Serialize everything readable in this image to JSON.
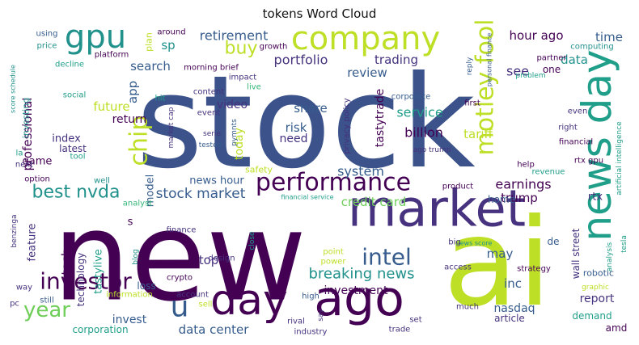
{
  "chart_data": {
    "type": "wordcloud",
    "title": "tokens Word Cloud",
    "colors": {
      "navy": "#46327e",
      "purple": "#440154",
      "blue": "#3b528b",
      "slate": "#365c8d",
      "teal": "#21918c",
      "sea": "#1f9e89",
      "green": "#35b779",
      "lime": "#6ece58",
      "yellow": "#bddf26",
      "yellowB": "#cfe11c"
    },
    "words": [
      {
        "text": "stock",
        "weight": 100,
        "color": "blue"
      },
      {
        "text": "new",
        "weight": 92,
        "color": "purple"
      },
      {
        "text": "ai",
        "weight": 88,
        "color": "yellow"
      },
      {
        "text": "market",
        "weight": 45,
        "color": "navy"
      },
      {
        "text": "day",
        "weight": 42,
        "color": "purple"
      },
      {
        "text": "ago",
        "weight": 42,
        "color": "purple"
      },
      {
        "text": "news day",
        "weight": 36,
        "color": "sea"
      },
      {
        "text": "company",
        "weight": 30,
        "color": "yellow"
      },
      {
        "text": "gpu",
        "weight": 30,
        "color": "teal"
      },
      {
        "text": "u",
        "weight": 30,
        "color": "slate"
      },
      {
        "text": "motley fool",
        "weight": 22,
        "color": "yellow"
      },
      {
        "text": "performance",
        "weight": 22,
        "color": "purple"
      },
      {
        "text": "investor",
        "weight": 22,
        "color": "purple"
      },
      {
        "text": "intel",
        "weight": 22,
        "color": "slate"
      },
      {
        "text": "chip",
        "weight": 22,
        "color": "yellow"
      },
      {
        "text": "year",
        "weight": 20,
        "color": "lime"
      },
      {
        "text": "best nvda",
        "weight": 18,
        "color": "teal"
      },
      {
        "text": "buy",
        "weight": 18,
        "color": "yellow"
      },
      {
        "text": "breaking news",
        "weight": 16,
        "color": "teal"
      },
      {
        "text": "stock market",
        "weight": 15,
        "color": "slate"
      },
      {
        "text": "portfolio",
        "weight": 15,
        "color": "navy"
      },
      {
        "text": "retirement",
        "weight": 14,
        "color": "slate"
      },
      {
        "text": "earnings",
        "weight": 14,
        "color": "purple"
      },
      {
        "text": "service",
        "weight": 14,
        "color": "sea"
      },
      {
        "text": "system",
        "weight": 14,
        "color": "slate"
      },
      {
        "text": "billion",
        "weight": 14,
        "color": "purple"
      },
      {
        "text": "hour ago",
        "weight": 14,
        "color": "purple"
      },
      {
        "text": "data center",
        "weight": 14,
        "color": "slate"
      },
      {
        "text": "may",
        "weight": 14,
        "color": "slate"
      },
      {
        "text": "inc",
        "weight": 14,
        "color": "slate"
      },
      {
        "text": "see",
        "weight": 14,
        "color": "navy"
      },
      {
        "text": "credit card",
        "weight": 13,
        "color": "lime"
      },
      {
        "text": "professional",
        "weight": 13,
        "color": "purple"
      },
      {
        "text": "trump",
        "weight": 13,
        "color": "purple"
      },
      {
        "text": "future",
        "weight": 13,
        "color": "yellow"
      },
      {
        "text": "review",
        "weight": 13,
        "color": "slate"
      },
      {
        "text": "search",
        "weight": 13,
        "color": "slate"
      },
      {
        "text": "share",
        "weight": 13,
        "color": "slate"
      },
      {
        "text": "risk",
        "weight": 13,
        "color": "slate"
      },
      {
        "text": "investment",
        "weight": 13,
        "color": "purple"
      },
      {
        "text": "tariff",
        "weight": 13,
        "color": "yellow"
      },
      {
        "text": "app",
        "weight": 13,
        "color": "slate"
      },
      {
        "text": "time",
        "weight": 13,
        "color": "slate"
      },
      {
        "text": "sp",
        "weight": 13,
        "color": "teal"
      },
      {
        "text": "trading",
        "weight": 13,
        "color": "navy"
      },
      {
        "text": "video",
        "weight": 12,
        "color": "navy"
      },
      {
        "text": "today",
        "weight": 12,
        "color": "yellow"
      },
      {
        "text": "need",
        "weight": 12,
        "color": "navy"
      },
      {
        "text": "tastytrade",
        "weight": 12,
        "color": "purple"
      },
      {
        "text": "data",
        "weight": 12,
        "color": "teal"
      },
      {
        "text": "tech",
        "weight": 12,
        "color": "purple"
      },
      {
        "text": "top",
        "weight": 12,
        "color": "navy"
      },
      {
        "text": "report",
        "weight": 12,
        "color": "navy"
      },
      {
        "text": "nasdaq",
        "weight": 12,
        "color": "slate"
      },
      {
        "text": "invest",
        "weight": 12,
        "color": "slate"
      },
      {
        "text": "model",
        "weight": 11,
        "color": "slate"
      },
      {
        "text": "return",
        "weight": 11,
        "color": "purple"
      },
      {
        "text": "game",
        "weight": 11,
        "color": "purple"
      },
      {
        "text": "index",
        "weight": 11,
        "color": "navy"
      },
      {
        "text": "news hour",
        "weight": 11,
        "color": "slate"
      },
      {
        "text": "feature",
        "weight": 11,
        "color": "navy"
      },
      {
        "text": "tastylive",
        "weight": 11,
        "color": "sea"
      },
      {
        "text": "rtx",
        "weight": 11,
        "color": "navy"
      },
      {
        "text": "wall street",
        "weight": 10,
        "color": "navy"
      },
      {
        "text": "amd",
        "weight": 10,
        "color": "purple"
      },
      {
        "text": "home",
        "weight": 10,
        "color": "slate"
      },
      {
        "text": "loss",
        "weight": 10,
        "color": "slate"
      },
      {
        "text": "article",
        "weight": 10,
        "color": "navy"
      },
      {
        "text": "technology",
        "weight": 10,
        "color": "navy"
      },
      {
        "text": "latest",
        "weight": 10,
        "color": "navy"
      },
      {
        "text": "corporation",
        "weight": 10,
        "color": "sea"
      },
      {
        "text": "demand",
        "weight": 10,
        "color": "sea"
      },
      {
        "text": "one",
        "weight": 10,
        "color": "purple"
      },
      {
        "text": "s",
        "weight": 10,
        "color": "purple"
      },
      {
        "text": "de",
        "weight": 10,
        "color": "slate"
      },
      {
        "text": "robotic",
        "weight": 9,
        "color": "slate"
      },
      {
        "text": "safety",
        "weight": 9,
        "color": "yellow"
      },
      {
        "text": "investing",
        "weight": 9,
        "color": "teal"
      },
      {
        "text": "morning brief",
        "weight": 8,
        "color": "purple"
      },
      {
        "text": "platform",
        "weight": 8,
        "color": "purple"
      },
      {
        "text": "growth",
        "weight": 8,
        "color": "purple"
      },
      {
        "text": "computing",
        "weight": 8,
        "color": "teal"
      },
      {
        "text": "partner",
        "weight": 8,
        "color": "purple"
      },
      {
        "text": "artificial intelligence",
        "weight": 8,
        "color": "sea"
      },
      {
        "text": "privacy policy",
        "weight": 8,
        "color": "navy"
      },
      {
        "text": "corporate",
        "weight": 8,
        "color": "slate"
      },
      {
        "text": "financial",
        "weight": 8,
        "color": "purple"
      },
      {
        "text": "rtx gpu",
        "weight": 8,
        "color": "purple"
      },
      {
        "text": "even",
        "weight": 8,
        "color": "navy"
      },
      {
        "text": "right",
        "weight": 8,
        "color": "navy"
      },
      {
        "text": "help",
        "weight": 8,
        "color": "purple"
      },
      {
        "text": "revenue",
        "weight": 8,
        "color": "sea"
      },
      {
        "text": "content",
        "weight": 8,
        "color": "navy"
      },
      {
        "text": "event",
        "weight": 8,
        "color": "navy"
      },
      {
        "text": "impact",
        "weight": 8,
        "color": "navy"
      },
      {
        "text": "around",
        "weight": 8,
        "color": "purple"
      },
      {
        "text": "plan",
        "weight": 8,
        "color": "yellow"
      },
      {
        "text": "using",
        "weight": 8,
        "color": "slate"
      },
      {
        "text": "price",
        "weight": 8,
        "color": "teal"
      },
      {
        "text": "decline",
        "weight": 8,
        "color": "sea"
      },
      {
        "text": "social",
        "weight": 8,
        "color": "sea"
      },
      {
        "text": "hit",
        "weight": 8,
        "color": "sea"
      },
      {
        "text": "live",
        "weight": 8,
        "color": "green"
      },
      {
        "text": "first",
        "weight": 8,
        "color": "purple"
      },
      {
        "text": "reply",
        "weight": 7,
        "color": "slate"
      },
      {
        "text": "personal finance",
        "weight": 7,
        "color": "slate"
      },
      {
        "text": "problem",
        "weight": 8,
        "color": "sea"
      },
      {
        "text": "market cap",
        "weight": 7,
        "color": "navy"
      },
      {
        "text": "serie",
        "weight": 7,
        "color": "navy"
      },
      {
        "text": "tested",
        "weight": 7,
        "color": "slate"
      },
      {
        "text": "pymnts",
        "weight": 7,
        "color": "slate"
      },
      {
        "text": "ago trump",
        "weight": 8,
        "color": "navy"
      },
      {
        "text": "la",
        "weight": 8,
        "color": "sea"
      },
      {
        "text": "next",
        "weight": 8,
        "color": "navy"
      },
      {
        "text": "tool",
        "weight": 8,
        "color": "sea"
      },
      {
        "text": "option",
        "weight": 8,
        "color": "purple"
      },
      {
        "text": "well",
        "weight": 8,
        "color": "teal"
      },
      {
        "text": "analyst",
        "weight": 8,
        "color": "green"
      },
      {
        "text": "financial service",
        "weight": 6,
        "color": "sea"
      },
      {
        "text": "product",
        "weight": 8,
        "color": "purple"
      },
      {
        "text": "tesla",
        "weight": 7,
        "color": "sea"
      },
      {
        "text": "analysis",
        "weight": 7,
        "color": "sea"
      },
      {
        "text": "news score",
        "weight": 6,
        "color": "teal"
      },
      {
        "text": "big",
        "weight": 8,
        "color": "navy"
      },
      {
        "text": "finance",
        "weight": 8,
        "color": "navy"
      },
      {
        "text": "design",
        "weight": 8,
        "color": "navy"
      },
      {
        "text": "blog",
        "weight": 7,
        "color": "teal"
      },
      {
        "text": "close",
        "weight": 7,
        "color": "sea"
      },
      {
        "text": "point",
        "weight": 8,
        "color": "yellow"
      },
      {
        "text": "power",
        "weight": 8,
        "color": "yellow"
      },
      {
        "text": "access",
        "weight": 8,
        "color": "navy"
      },
      {
        "text": "strategy",
        "weight": 8,
        "color": "purple"
      },
      {
        "text": "graphic",
        "weight": 7,
        "color": "yellow"
      },
      {
        "text": "benzinga",
        "weight": 7,
        "color": "navy"
      },
      {
        "text": "way",
        "weight": 8,
        "color": "navy"
      },
      {
        "text": "still",
        "weight": 8,
        "color": "slate"
      },
      {
        "text": "pc",
        "weight": 8,
        "color": "navy"
      },
      {
        "text": "information",
        "weight": 8,
        "color": "yellow"
      },
      {
        "text": "crypto",
        "weight": 8,
        "color": "purple"
      },
      {
        "text": "account",
        "weight": 8,
        "color": "navy"
      },
      {
        "text": "sell",
        "weight": 8,
        "color": "yellow"
      },
      {
        "text": "high",
        "weight": 8,
        "color": "slate"
      },
      {
        "text": "say",
        "weight": 7,
        "color": "navy"
      },
      {
        "text": "rival",
        "weight": 8,
        "color": "navy"
      },
      {
        "text": "industry",
        "weight": 8,
        "color": "navy"
      },
      {
        "text": "set",
        "weight": 8,
        "color": "navy"
      },
      {
        "text": "trade",
        "weight": 8,
        "color": "navy"
      },
      {
        "text": "much",
        "weight": 8,
        "color": "navy"
      },
      {
        "text": "score schedule",
        "weight": 6,
        "color": "teal"
      }
    ]
  }
}
